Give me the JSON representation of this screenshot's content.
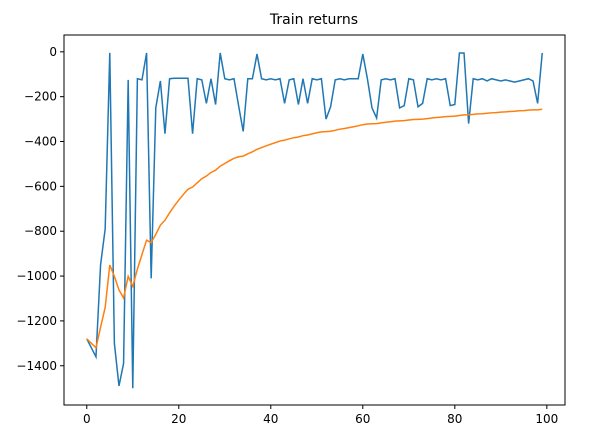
{
  "chart_data": {
    "type": "line",
    "title": "Train returns",
    "x": [
      0,
      1,
      2,
      3,
      4,
      5,
      6,
      7,
      8,
      9,
      10,
      11,
      12,
      13,
      14,
      15,
      16,
      17,
      18,
      19,
      20,
      21,
      22,
      23,
      24,
      25,
      26,
      27,
      28,
      29,
      30,
      31,
      32,
      33,
      34,
      35,
      36,
      37,
      38,
      39,
      40,
      41,
      42,
      43,
      44,
      45,
      46,
      47,
      48,
      49,
      50,
      51,
      52,
      53,
      54,
      55,
      56,
      57,
      58,
      59,
      60,
      61,
      62,
      63,
      64,
      65,
      66,
      67,
      68,
      69,
      70,
      71,
      72,
      73,
      74,
      75,
      76,
      77,
      78,
      79,
      80,
      81,
      82,
      83,
      84,
      85,
      86,
      87,
      88,
      89,
      90,
      91,
      92,
      93,
      94,
      95,
      96,
      97,
      98,
      99
    ],
    "series": [
      {
        "color": "#1f77b4",
        "values": [
          -1280,
          -1320,
          -1360,
          -950,
          -790,
          -5,
          -1300,
          -1490,
          -1390,
          -125,
          -1500,
          -120,
          -125,
          -5,
          -1010,
          -250,
          -130,
          -365,
          -120,
          -118,
          -118,
          -118,
          -118,
          -365,
          -120,
          -125,
          -230,
          -120,
          -235,
          -5,
          -120,
          -125,
          -120,
          -240,
          -355,
          -120,
          -120,
          -10,
          -120,
          -125,
          -120,
          -125,
          -120,
          -230,
          -125,
          -120,
          -235,
          -120,
          -230,
          -120,
          -125,
          -120,
          -300,
          -245,
          -125,
          -120,
          -125,
          -120,
          -120,
          -120,
          -10,
          -120,
          -250,
          -295,
          -125,
          -120,
          -125,
          -120,
          -250,
          -240,
          -120,
          -125,
          -245,
          -230,
          -120,
          -125,
          -120,
          -125,
          -120,
          -240,
          -235,
          -5,
          -5,
          -320,
          -120,
          -125,
          -120,
          -130,
          -120,
          -125,
          -130,
          -125,
          -130,
          -135,
          -130,
          -125,
          -120,
          -130,
          -230,
          -5
        ]
      },
      {
        "color": "#ff7f0e",
        "values": [
          -1280,
          -1300,
          -1320,
          -1228,
          -1140,
          -951,
          -1001,
          -1062,
          -1098,
          -1001,
          -1046,
          -969,
          -904,
          -840,
          -851,
          -814,
          -773,
          -751,
          -718,
          -688,
          -661,
          -636,
          -613,
          -603,
          -584,
          -566,
          -554,
          -538,
          -528,
          -510,
          -498,
          -486,
          -475,
          -468,
          -465,
          -455,
          -446,
          -435,
          -427,
          -419,
          -412,
          -405,
          -398,
          -394,
          -388,
          -383,
          -380,
          -374,
          -371,
          -366,
          -361,
          -357,
          -356,
          -354,
          -350,
          -345,
          -342,
          -338,
          -334,
          -330,
          -325,
          -322,
          -321,
          -320,
          -317,
          -314,
          -312,
          -309,
          -308,
          -307,
          -304,
          -302,
          -301,
          -300,
          -298,
          -295,
          -293,
          -291,
          -289,
          -288,
          -287,
          -284,
          -281,
          -281,
          -279,
          -277,
          -276,
          -274,
          -272,
          -271,
          -269,
          -268,
          -266,
          -265,
          -263,
          -262,
          -260,
          -259,
          -259,
          -256
        ]
      }
    ],
    "xlim": [
      -4.95,
      103.95
    ],
    "xticks": [
      0,
      20,
      40,
      60,
      80,
      100
    ],
    "ylim": [
      -1575,
      75
    ],
    "yticks": [
      {
        "value": -1400,
        "label": "−1400"
      },
      {
        "value": -1200,
        "label": "−1200"
      },
      {
        "value": -1000,
        "label": "−1000"
      },
      {
        "value": -800,
        "label": "−800"
      },
      {
        "value": -600,
        "label": "−600"
      },
      {
        "value": -400,
        "label": "−400"
      },
      {
        "value": -200,
        "label": "−200"
      },
      0
    ],
    "grid": false
  }
}
